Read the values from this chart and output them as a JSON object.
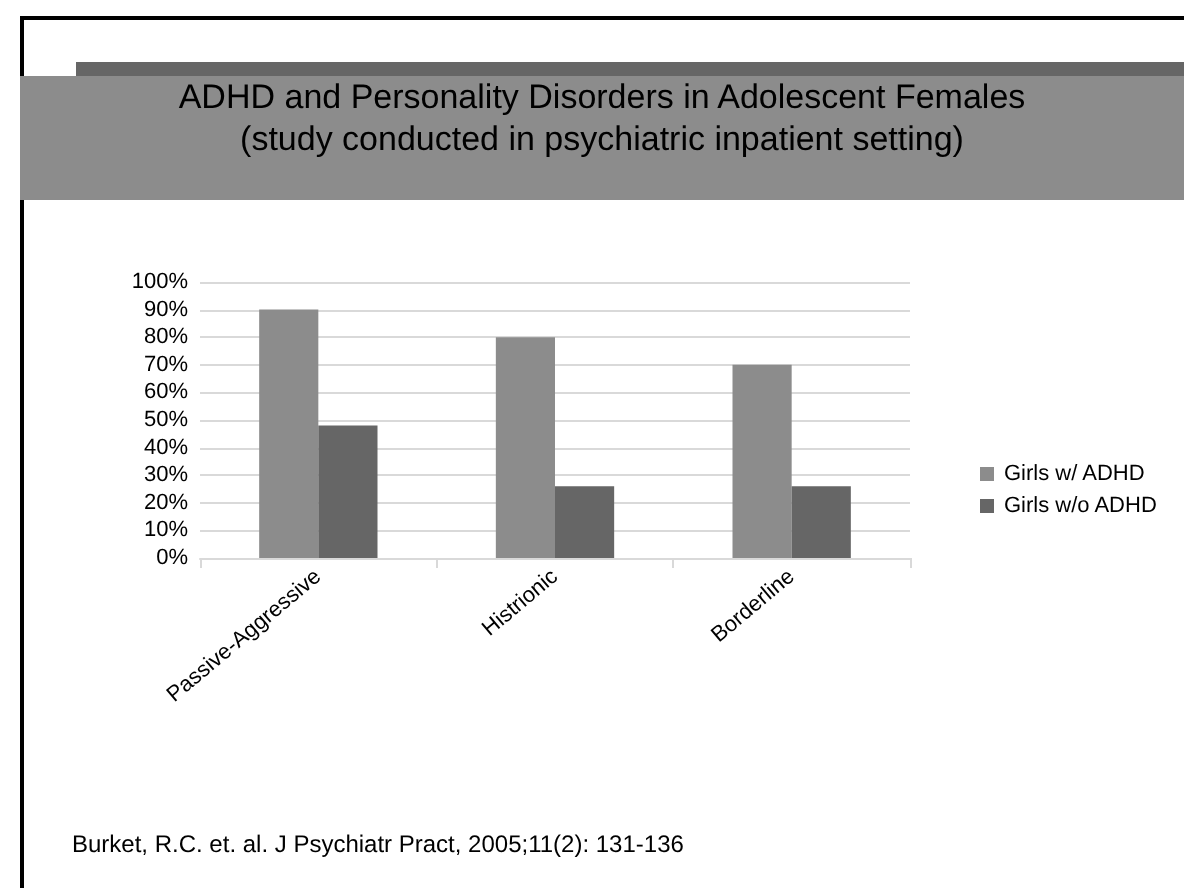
{
  "chart_data": {
    "type": "bar",
    "title": "ADHD and Personality Disorders in Adolescent Females",
    "subtitle": "(study conducted in psychiatric inpatient setting)",
    "categories": [
      "Passive-Aggressive",
      "Histrionic",
      "Borderline"
    ],
    "series": [
      {
        "name": "Girls w/ ADHD",
        "color": "#8c8c8c",
        "values": [
          90,
          80,
          70
        ]
      },
      {
        "name": "Girls w/o ADHD",
        "color": "#666666",
        "values": [
          48,
          26,
          26
        ]
      }
    ],
    "ylim": [
      0,
      100
    ],
    "yticks": [
      {
        "value": 0,
        "label": "0%"
      },
      {
        "value": 10,
        "label": "10%"
      },
      {
        "value": 20,
        "label": "20%"
      },
      {
        "value": 30,
        "label": "30%"
      },
      {
        "value": 40,
        "label": "40%"
      },
      {
        "value": 50,
        "label": "50%"
      },
      {
        "value": 60,
        "label": "60%"
      },
      {
        "value": 70,
        "label": "70%"
      },
      {
        "value": 80,
        "label": "80%"
      },
      {
        "value": 90,
        "label": "90%"
      },
      {
        "value": 100,
        "label": "100%"
      }
    ],
    "grid": "y",
    "legend": "right",
    "annotations": [
      "Burket, R.C. et. al. J Psychiatr Pract, 2005;11(2): 131-136"
    ]
  }
}
